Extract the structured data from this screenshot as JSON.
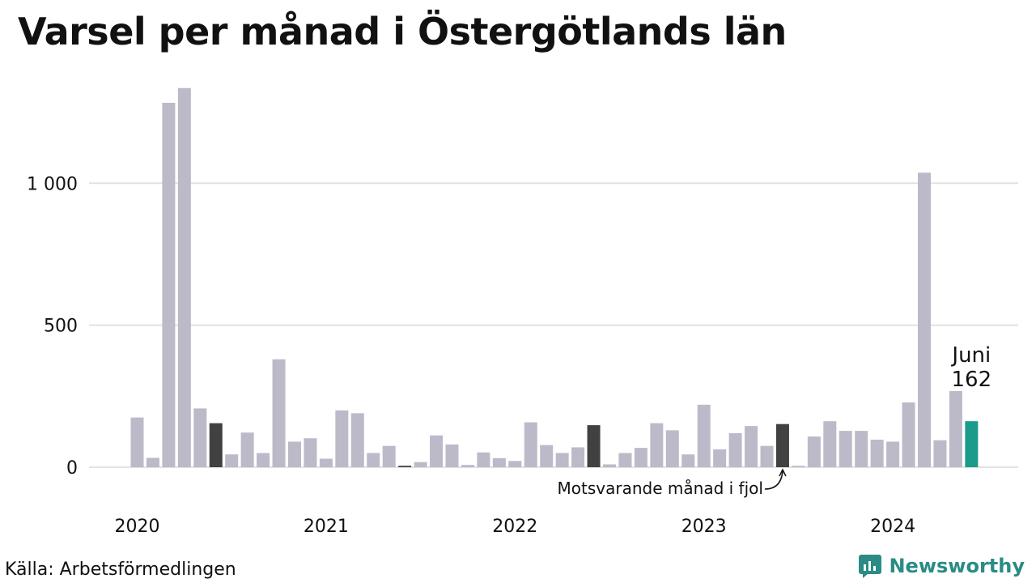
{
  "title": "Varsel per månad i Östergötlands län",
  "source": "Källa: Arbetsförmedlingen",
  "brand": "Newsworthy",
  "colors": {
    "default_bar": "#bcbac9",
    "last_year_bar": "#414141",
    "current_bar": "#1a9b8c",
    "grid": "#e2e2e2",
    "brand": "#2a8c84"
  },
  "chart_data": {
    "type": "bar",
    "title": "Varsel per månad i Östergötlands län",
    "xlabel": "",
    "ylabel": "",
    "ylim": [
      0,
      1340
    ],
    "yticks": [
      {
        "value": 0,
        "label": "0"
      },
      {
        "value": 500,
        "label": "500"
      },
      {
        "value": 1000,
        "label": "1 000"
      }
    ],
    "year_labels": [
      "2020",
      "2021",
      "2022",
      "2023",
      "2024"
    ],
    "start_month": "2020-01",
    "values": [
      175,
      33,
      1283,
      1335,
      207,
      155,
      45,
      122,
      50,
      380,
      90,
      102,
      30,
      200,
      190,
      50,
      75,
      5,
      18,
      112,
      80,
      8,
      52,
      32,
      22,
      158,
      78,
      50,
      70,
      148,
      10,
      50,
      68,
      155,
      130,
      45,
      220,
      63,
      120,
      145,
      75,
      152,
      5,
      108,
      162,
      128,
      128,
      97,
      90,
      228,
      1037,
      95,
      268,
      162
    ],
    "highlights": {
      "last_year_indices": [
        5,
        17,
        29,
        41
      ],
      "current_index": 53
    },
    "current_label": {
      "month": "Juni",
      "value": "162"
    },
    "annotation": "Motsvarande månad i fjol"
  }
}
